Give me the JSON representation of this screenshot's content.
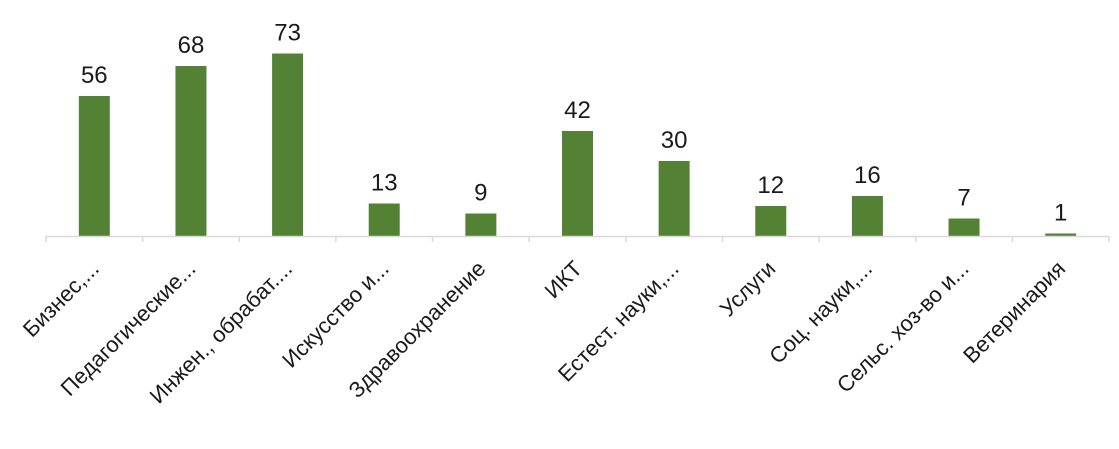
{
  "chart_data": {
    "type": "bar",
    "categories": [
      "Бизнес,...",
      "Педагогические...",
      "Инжен., обрабат....",
      "Искусство и...",
      "Здравоохранение",
      "ИКТ",
      "Естест. науки,...",
      "Услуги",
      "Соц. науки,...",
      "Сельс. хоз-во и...",
      "Ветеринария"
    ],
    "values": [
      56,
      68,
      73,
      13,
      9,
      42,
      30,
      12,
      16,
      7,
      1
    ],
    "data_labels": [
      "56",
      "68",
      "73",
      "13",
      "9",
      "42",
      "30",
      "12",
      "16",
      "7",
      "1"
    ],
    "ylim": [
      0,
      80
    ],
    "grid": false,
    "legend": "none",
    "colors": {
      "bar": "#548235",
      "axis": "#d9d9d9",
      "text": "#1a1a1a"
    }
  }
}
